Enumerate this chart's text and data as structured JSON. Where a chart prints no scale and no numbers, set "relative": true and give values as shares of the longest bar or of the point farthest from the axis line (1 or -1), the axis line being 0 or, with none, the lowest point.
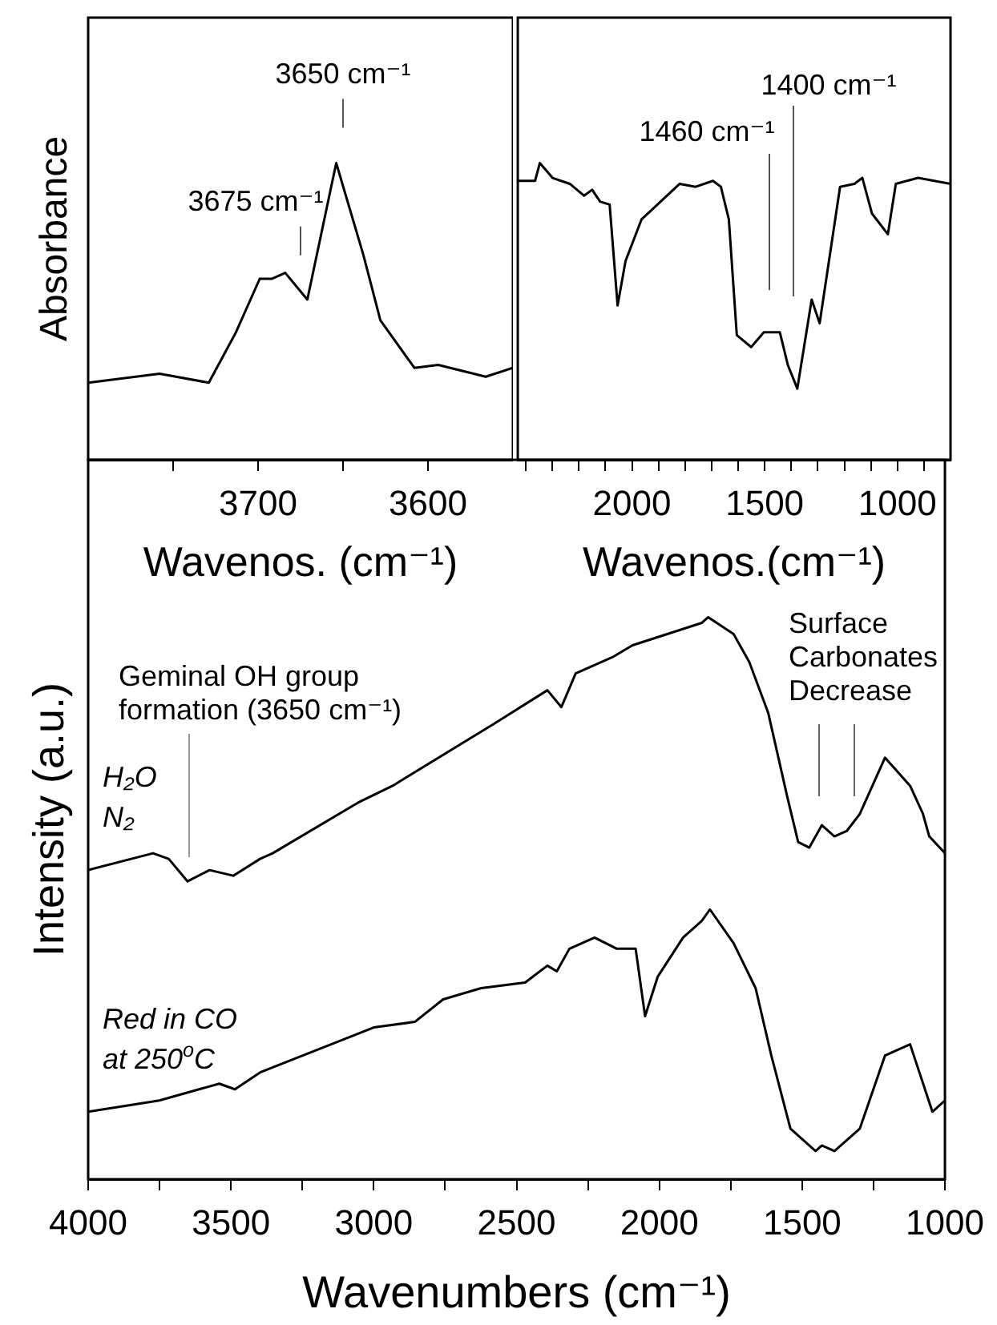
{
  "chart_data": [
    {
      "type": "line",
      "ylabel": "Absorbance",
      "xlabel": "Wavenos. (cm⁻¹)",
      "relative": true,
      "color": "#000000",
      "x": [
        3800,
        3758,
        3729,
        3713,
        3699,
        3692,
        3684,
        3671,
        3654,
        3638,
        3628,
        3608,
        3594,
        3566,
        3550
      ],
      "values": [
        0.26,
        0.29,
        0.26,
        0.43,
        0.61,
        0.61,
        0.63,
        0.54,
        1.0,
        0.69,
        0.47,
        0.31,
        0.32,
        0.28,
        0.31
      ],
      "xlim": [
        3800,
        3550
      ],
      "xticks": [
        {
          "value": 3750,
          "label": null
        },
        3700,
        {
          "value": 3650,
          "label": null
        },
        3600
      ],
      "annotations": [
        {
          "text": "3675 cm⁻¹",
          "x": 3675,
          "y": 0.57
        },
        {
          "text": "3650 cm⁻¹",
          "x": 3650,
          "y": 1.0
        }
      ]
    },
    {
      "type": "line",
      "xlabel": "Wavenos.(cm⁻¹)",
      "relative": true,
      "color": "#000000",
      "x": [
        2430,
        2365,
        2347,
        2299,
        2234,
        2180,
        2150,
        2120,
        2084,
        2054,
        2024,
        1964,
        1892,
        1820,
        1760,
        1695,
        1665,
        1635,
        1605,
        1551,
        1503,
        1443,
        1413,
        1377,
        1323,
        1293,
        1216,
        1162,
        1132,
        1096,
        1036,
        1006,
        922,
        800
      ],
      "values": [
        0.94,
        0.94,
        1.0,
        0.95,
        0.93,
        0.89,
        0.91,
        0.87,
        0.86,
        0.52,
        0.67,
        0.81,
        0.87,
        0.93,
        0.92,
        0.94,
        0.92,
        0.81,
        0.42,
        0.38,
        0.43,
        0.43,
        0.32,
        0.24,
        0.54,
        0.46,
        0.92,
        0.93,
        0.95,
        0.83,
        0.76,
        0.93,
        0.95,
        0.93
      ],
      "xlim": [
        2430,
        800
      ],
      "xticks": [
        {
          "value": 2400,
          "label": null
        },
        {
          "value": 2300,
          "label": null
        },
        {
          "value": 2200,
          "label": null
        },
        {
          "value": 2100,
          "label": null
        },
        2000,
        {
          "value": 1900,
          "label": null
        },
        {
          "value": 1800,
          "label": null
        },
        {
          "value": 1700,
          "label": null
        },
        {
          "value": 1600,
          "label": null
        },
        1500,
        {
          "value": 1400,
          "label": null
        },
        {
          "value": 1300,
          "label": null
        },
        {
          "value": 1200,
          "label": null
        },
        {
          "value": 1100,
          "label": null
        },
        1000,
        {
          "value": 900,
          "label": null
        }
      ],
      "annotations": [
        "1460 cm⁻¹",
        "1400 cm⁻¹"
      ]
    },
    {
      "type": "line",
      "ylabel": "Intensity (a.u.)",
      "xlabel": "Wavenumbers (cm⁻¹)",
      "relative": true,
      "series": [
        {
          "name": "H₂O N₂",
          "color": "#000000",
          "x": [
            4000,
            3773,
            3718,
            3652,
            3575,
            3492,
            3398,
            3354,
            3055,
            2934,
            2580,
            2392,
            2343,
            2293,
            2160,
            2094,
            1851,
            1829,
            1740,
            1685,
            1619,
            1552,
            1514,
            1475,
            1431,
            1387,
            1343,
            1298,
            1210,
            1122,
            1077,
            1055,
            1000
          ],
          "values": [
            0.55,
            0.58,
            0.57,
            0.53,
            0.55,
            0.54,
            0.57,
            0.58,
            0.67,
            0.7,
            0.81,
            0.87,
            0.84,
            0.9,
            0.93,
            0.95,
            0.99,
            1.0,
            0.97,
            0.92,
            0.83,
            0.68,
            0.6,
            0.59,
            0.63,
            0.61,
            0.62,
            0.65,
            0.75,
            0.7,
            0.65,
            0.61,
            0.58
          ]
        },
        {
          "name": "Red in CO at 250$^{o}$C",
          "color": "#000000",
          "x": [
            4000,
            3751,
            3541,
            3486,
            3398,
            3000,
            2856,
            2757,
            2624,
            2470,
            2392,
            2359,
            2315,
            2227,
            2149,
            2083,
            2050,
            2006,
            1917,
            1851,
            1823,
            1740,
            1663,
            1608,
            1541,
            1453,
            1431,
            1387,
            1298,
            1210,
            1122,
            1044,
            1000
          ],
          "values": [
            0.12,
            0.14,
            0.17,
            0.16,
            0.19,
            0.27,
            0.28,
            0.32,
            0.34,
            0.35,
            0.38,
            0.37,
            0.41,
            0.43,
            0.41,
            0.41,
            0.29,
            0.36,
            0.43,
            0.46,
            0.48,
            0.42,
            0.34,
            0.22,
            0.09,
            0.05,
            0.06,
            0.05,
            0.09,
            0.22,
            0.24,
            0.12,
            0.14
          ]
        }
      ],
      "xlim": [
        4000,
        1000
      ],
      "xticks": [
        4000,
        {
          "value": 3750,
          "label": null
        },
        3500,
        {
          "value": 3250,
          "label": null
        },
        3000,
        {
          "value": 2750,
          "label": null
        },
        2500,
        {
          "value": 2250,
          "label": null
        },
        2000,
        {
          "value": 1750,
          "label": null
        },
        1500,
        {
          "value": 1250,
          "label": null
        },
        1000
      ],
      "annotations": [
        "Geminal OH group formation (3650 cm⁻¹)",
        "Surface Carbonates Decrease"
      ]
    }
  ]
}
